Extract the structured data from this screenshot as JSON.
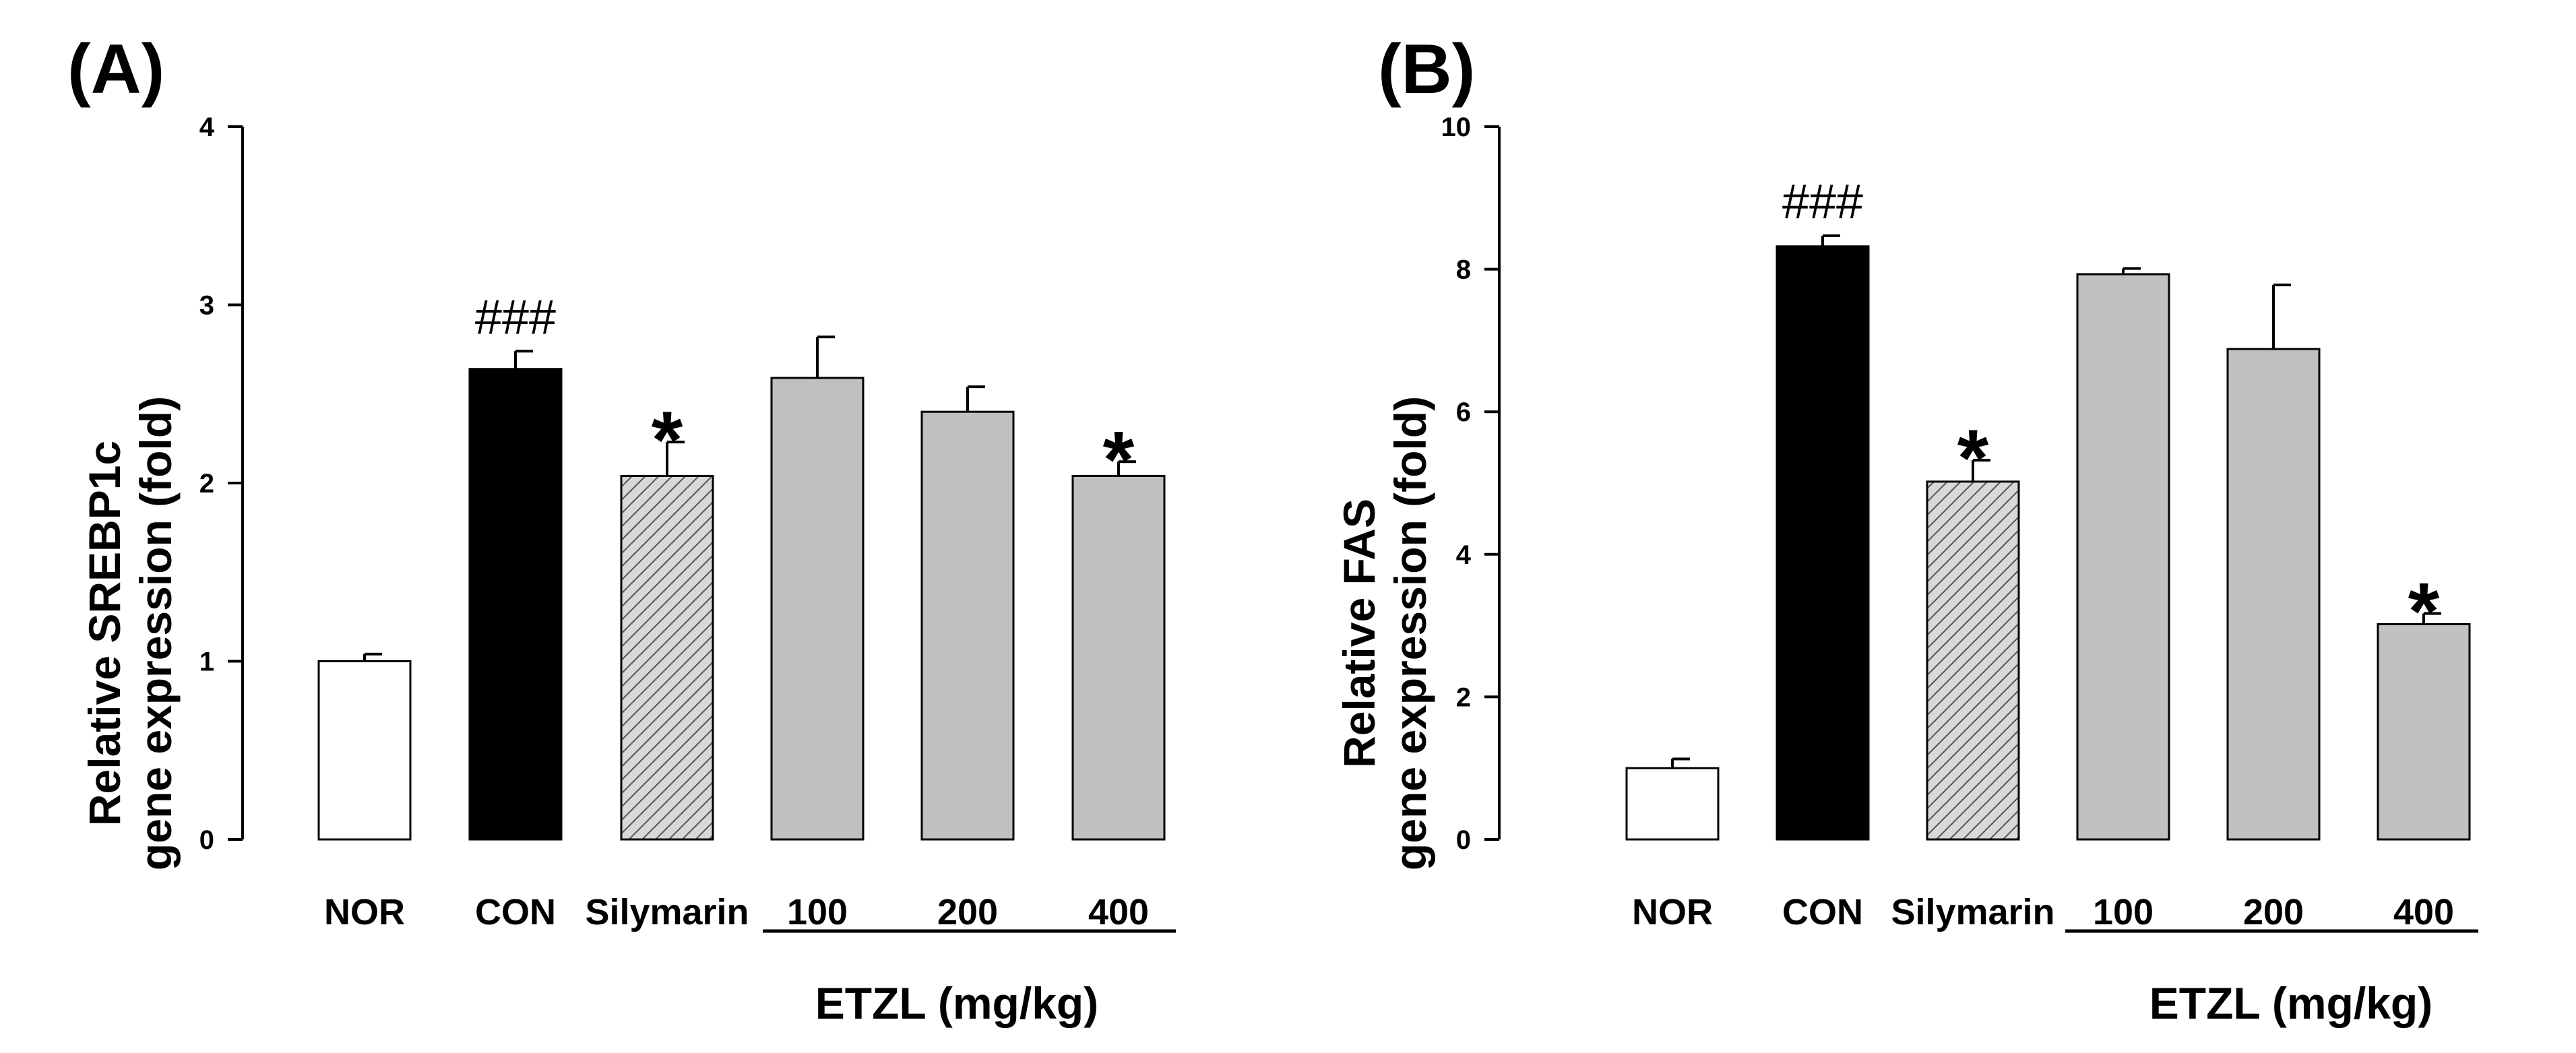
{
  "colors": {
    "NOR": "#ffffff",
    "CON": "#000000",
    "Silymarin": "#d3d3d3",
    "ETZL": "#c0c0c0",
    "axis": "#000000"
  },
  "chart_data": [
    {
      "panel": "(A)",
      "type": "bar",
      "categories": [
        "NOR",
        "CON",
        "Silymarin",
        "100",
        "200",
        "400"
      ],
      "values": [
        1.0,
        2.64,
        2.04,
        2.59,
        2.4,
        2.04
      ],
      "errors": [
        0.04,
        0.1,
        0.19,
        0.23,
        0.14,
        0.08
      ],
      "annotations": [
        "",
        "###",
        "*",
        "",
        "",
        "*"
      ],
      "ylabel_lines": [
        "Relative SREBP1c",
        "gene expression (fold)"
      ],
      "ylim": [
        0,
        4
      ],
      "yticks": [
        0,
        1,
        2,
        3,
        4
      ],
      "group_label": "ETZL (mg/kg)"
    },
    {
      "panel": "(B)",
      "type": "bar",
      "categories": [
        "NOR",
        "CON",
        "Silymarin",
        "100",
        "200",
        "400"
      ],
      "values": [
        1.0,
        8.32,
        5.02,
        7.93,
        6.88,
        3.02
      ],
      "errors": [
        0.13,
        0.15,
        0.3,
        0.08,
        0.9,
        0.15
      ],
      "annotations": [
        "",
        "###",
        "*",
        "",
        "",
        "*"
      ],
      "ylabel_lines": [
        "Relative FAS",
        "gene expression (fold)"
      ],
      "ylim": [
        0,
        10
      ],
      "yticks": [
        0,
        2,
        4,
        6,
        8,
        10
      ],
      "group_label": "ETZL (mg/kg)"
    }
  ]
}
